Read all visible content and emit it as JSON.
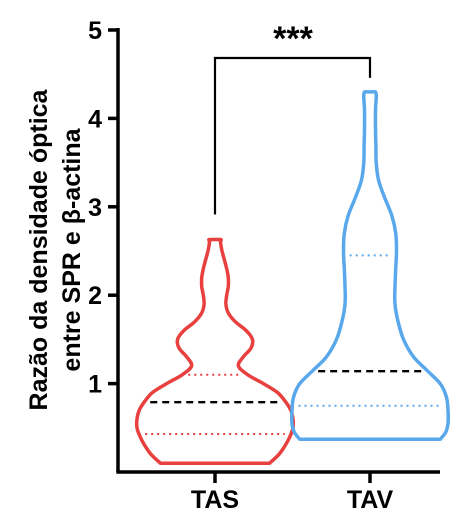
{
  "chart_data": {
    "type": "violin",
    "ylabel_lines": [
      "Razão da densidade óptica",
      "entre SPR e β-actina"
    ],
    "ylim": [
      0,
      5
    ],
    "yticks": [
      "1",
      "2",
      "3",
      "4",
      "5"
    ],
    "categories": [
      "TAS",
      "TAV"
    ],
    "significance": "***",
    "colors": {
      "TAS": "#e8403e",
      "TAV": "#5aa8ec",
      "median": "#000000",
      "axis": "#000000"
    },
    "violins": [
      {
        "name": "TAS",
        "min": 0.1,
        "max": 2.63,
        "median": 0.79,
        "q1": 0.43,
        "q3": 1.1,
        "profile": [
          [
            0.1,
            0.7
          ],
          [
            0.2,
            0.82
          ],
          [
            0.3,
            0.9
          ],
          [
            0.4,
            0.96
          ],
          [
            0.5,
            1.0
          ],
          [
            0.6,
            1.0
          ],
          [
            0.7,
            0.97
          ],
          [
            0.8,
            0.9
          ],
          [
            0.9,
            0.8
          ],
          [
            1.0,
            0.62
          ],
          [
            1.1,
            0.42
          ],
          [
            1.2,
            0.3
          ],
          [
            1.3,
            0.36
          ],
          [
            1.4,
            0.46
          ],
          [
            1.5,
            0.48
          ],
          [
            1.6,
            0.4
          ],
          [
            1.7,
            0.26
          ],
          [
            1.8,
            0.17
          ],
          [
            1.9,
            0.14
          ],
          [
            2.0,
            0.15
          ],
          [
            2.1,
            0.17
          ],
          [
            2.2,
            0.17
          ],
          [
            2.3,
            0.15
          ],
          [
            2.4,
            0.12
          ],
          [
            2.5,
            0.09
          ],
          [
            2.6,
            0.07
          ],
          [
            2.63,
            0.07
          ]
        ]
      },
      {
        "name": "TAV",
        "min": 0.37,
        "max": 4.3,
        "median": 1.14,
        "q1": 0.75,
        "q3": 2.45,
        "profile": [
          [
            0.37,
            0.9
          ],
          [
            0.45,
            0.97
          ],
          [
            0.55,
            1.0
          ],
          [
            0.7,
            1.0
          ],
          [
            0.85,
            0.98
          ],
          [
            1.0,
            0.9
          ],
          [
            1.15,
            0.73
          ],
          [
            1.3,
            0.56
          ],
          [
            1.5,
            0.43
          ],
          [
            1.7,
            0.36
          ],
          [
            1.9,
            0.32
          ],
          [
            2.1,
            0.32
          ],
          [
            2.3,
            0.33
          ],
          [
            2.5,
            0.34
          ],
          [
            2.7,
            0.33
          ],
          [
            2.9,
            0.28
          ],
          [
            3.1,
            0.19
          ],
          [
            3.3,
            0.11
          ],
          [
            3.5,
            0.08
          ],
          [
            3.7,
            0.075
          ],
          [
            3.9,
            0.07
          ],
          [
            4.1,
            0.07
          ],
          [
            4.3,
            0.07
          ]
        ]
      }
    ]
  }
}
